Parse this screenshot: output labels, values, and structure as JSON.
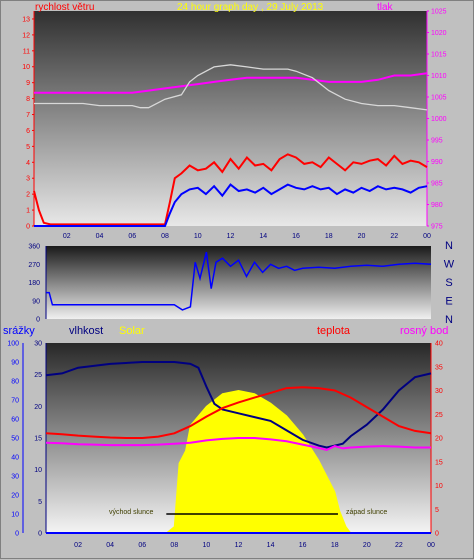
{
  "top_panel": {
    "label_left": "rychlost větru",
    "title": "24 hour graph day , 29 July 2013",
    "label_right": "tlak"
  },
  "mid_panel": {
    "compass": [
      "N",
      "W",
      "S",
      "E",
      "N"
    ]
  },
  "bottom_panel": {
    "labels": {
      "rain": "srážky",
      "humidity": "vlhkost",
      "solar": "Solar",
      "temperature": "teplota",
      "dewpoint": "rosný bod"
    },
    "annotations": {
      "sunrise": "východ slunce",
      "sunset": "západ slunce"
    }
  },
  "colors": {
    "wind_gust": "#ff0000",
    "wind_avg": "#0000ff",
    "pressure": "#ff00ff",
    "pressure_trend": "#d8d8d8",
    "temperature": "#ff0000",
    "dewpoint": "#ff00ff",
    "humidity": "#000080",
    "solar": "#ffff00",
    "rain_axis": "#0000ff",
    "title": "#ffff00"
  },
  "chart_data": [
    {
      "type": "line",
      "title": "24 hour graph day , 29 July 2013",
      "x_ticks": [
        "02",
        "04",
        "06",
        "08",
        "10",
        "12",
        "14",
        "16",
        "18",
        "20",
        "22",
        "00"
      ],
      "xlim": [
        0,
        24
      ],
      "y_left": {
        "label": "rychlost větru",
        "ticks": [
          0,
          1,
          2,
          3,
          4,
          5,
          6,
          7,
          8,
          9,
          10,
          11,
          12,
          13
        ],
        "ylim": [
          0,
          13.5
        ]
      },
      "y_right": {
        "label": "tlak",
        "ticks": [
          975,
          980,
          985,
          990,
          995,
          1000,
          1005,
          1010,
          1015,
          1020,
          1025
        ],
        "ylim": [
          975,
          1025
        ]
      },
      "series": [
        {
          "name": "",
          "axis": "left",
          "color": "wind_gust",
          "x": [
            0.0,
            0.3,
            0.6,
            1,
            2,
            3,
            4,
            5,
            6,
            7,
            8,
            8.3,
            8.6,
            9,
            9.5,
            10,
            10.5,
            11,
            11.5,
            12,
            12.5,
            13,
            13.5,
            14,
            14.5,
            15,
            15.5,
            16,
            16.5,
            17,
            17.5,
            18,
            18.5,
            19,
            19.5,
            20,
            20.5,
            21,
            21.5,
            22,
            22.5,
            23,
            23.5,
            24
          ],
          "y": [
            2.2,
            1.0,
            0.2,
            0.1,
            0.1,
            0.1,
            0.1,
            0.1,
            0.1,
            0.1,
            0.1,
            1.5,
            3.0,
            3.3,
            3.8,
            3.5,
            3.6,
            4.0,
            3.4,
            4.2,
            3.6,
            4.3,
            3.8,
            3.9,
            3.5,
            4.2,
            4.5,
            4.3,
            3.9,
            4.0,
            3.7,
            4.3,
            3.9,
            3.5,
            4.0,
            3.9,
            4.1,
            4.2,
            3.8,
            4.4,
            3.9,
            4.1,
            4.0,
            3.7
          ]
        },
        {
          "name": "",
          "axis": "left",
          "color": "wind_avg",
          "x": [
            0,
            1,
            2,
            3,
            4,
            5,
            6,
            7,
            8,
            8.3,
            8.6,
            9,
            9.5,
            10,
            10.5,
            11,
            11.5,
            12,
            12.5,
            13,
            13.5,
            14,
            14.5,
            15,
            15.5,
            16,
            16.5,
            17,
            17.5,
            18,
            18.5,
            19,
            19.5,
            20,
            20.5,
            21,
            21.5,
            22,
            22.5,
            23,
            23.5,
            24
          ],
          "y": [
            0,
            0,
            0,
            0,
            0,
            0,
            0,
            0,
            0,
            0.8,
            1.5,
            2.0,
            2.3,
            2.4,
            2.0,
            2.5,
            1.9,
            2.6,
            2.2,
            2.3,
            2.1,
            2.4,
            2.0,
            2.3,
            2.6,
            2.4,
            2.3,
            2.5,
            2.3,
            2.4,
            2.0,
            2.3,
            2.1,
            2.4,
            2.2,
            2.5,
            2.3,
            2.4,
            2.3,
            2.1,
            2.4,
            2.5
          ]
        },
        {
          "name": "",
          "axis": "right",
          "color": "pressure",
          "x": [
            0,
            2,
            4,
            6,
            7,
            8,
            9,
            10,
            11,
            12,
            13,
            14,
            15,
            16,
            17,
            18,
            19,
            20,
            21,
            22,
            23,
            24
          ],
          "y": [
            1006,
            1006,
            1006,
            1006,
            1006.5,
            1007,
            1007.5,
            1008,
            1008.5,
            1009,
            1009.5,
            1009.5,
            1009.5,
            1009.5,
            1009,
            1008.5,
            1008.5,
            1008.5,
            1009,
            1010,
            1010,
            1010.5
          ]
        },
        {
          "name": "",
          "axis": "right",
          "color": "pressure_trend",
          "x": [
            0,
            2,
            3,
            4,
            5,
            6,
            6.5,
            7,
            8,
            9,
            9.5,
            10,
            11,
            12,
            13,
            14,
            15,
            15.5,
            16,
            17,
            18,
            19,
            20,
            21,
            22,
            23,
            24
          ],
          "y": [
            1003.5,
            1003.5,
            1003.5,
            1003,
            1003,
            1003,
            1002.5,
            1002.5,
            1004.5,
            1005.5,
            1008.5,
            1010,
            1012,
            1012.5,
            1012,
            1011.5,
            1011.5,
            1011.5,
            1011,
            1009.5,
            1006.5,
            1004.5,
            1003.5,
            1003,
            1003,
            1002.5,
            1002
          ]
        }
      ]
    },
    {
      "type": "line",
      "title": "",
      "x_ticks": [],
      "xlim": [
        0,
        24
      ],
      "y_left": {
        "ticks": [
          0,
          90,
          180,
          270,
          360
        ],
        "ylim": [
          0,
          360
        ]
      },
      "compass": [
        "N",
        "W",
        "S",
        "E",
        "N"
      ],
      "series": [
        {
          "name": "",
          "color": "wind_avg",
          "x": [
            0,
            0.2,
            0.4,
            1,
            2,
            4,
            6,
            8,
            8.5,
            9,
            9.3,
            9.6,
            10,
            10.3,
            10.6,
            11,
            11.5,
            12,
            12.5,
            13,
            13.5,
            14,
            14.5,
            15,
            15.5,
            16,
            17,
            18,
            19,
            20,
            21,
            22,
            23,
            24
          ],
          "y": [
            130,
            130,
            70,
            70,
            70,
            70,
            70,
            70,
            45,
            60,
            280,
            200,
            330,
            150,
            280,
            300,
            260,
            290,
            210,
            280,
            230,
            270,
            250,
            260,
            240,
            250,
            255,
            250,
            260,
            265,
            260,
            270,
            275,
            270
          ]
        }
      ]
    },
    {
      "type": "line",
      "title": "",
      "x_ticks": [
        "02",
        "04",
        "06",
        "08",
        "10",
        "12",
        "14",
        "16",
        "18",
        "20",
        "22",
        "00"
      ],
      "xlim": [
        0,
        24
      ],
      "y_rain": {
        "label": "srážky",
        "ticks": [
          0,
          10,
          20,
          30,
          40,
          50,
          60,
          70,
          80,
          90,
          100
        ],
        "ylim": [
          0,
          100
        ]
      },
      "y_left": {
        "label": "vlhkost",
        "ticks": [
          0,
          5,
          10,
          15,
          20,
          25,
          30
        ],
        "ylim": [
          0,
          30
        ]
      },
      "y_right": {
        "label": "teplota",
        "ticks": [
          0,
          5,
          10,
          15,
          20,
          25,
          30,
          35,
          40
        ],
        "ylim": [
          0,
          40
        ]
      },
      "annotations": [
        "východ slunce",
        "západ slunce"
      ],
      "series": [
        {
          "name": "Solar",
          "color": "solar",
          "x": [
            0,
            7,
            7.5,
            8,
            8.3,
            8.7,
            9,
            10,
            11,
            12,
            13,
            14,
            15,
            16,
            17,
            18,
            18.3,
            18.7,
            19,
            24
          ],
          "y": [
            0,
            0,
            0,
            1.0,
            11.0,
            13.0,
            17.0,
            20.0,
            22.0,
            22.5,
            22.0,
            20.5,
            18.5,
            15.5,
            11.5,
            6.5,
            3.5,
            1.0,
            0,
            0
          ]
        },
        {
          "name": "vlhkost",
          "color": "humidity",
          "x": [
            0,
            1,
            2,
            4,
            6,
            7,
            8,
            9,
            9.5,
            10,
            10.5,
            11,
            12,
            13,
            14,
            15,
            16,
            17,
            17.5,
            18,
            18.5,
            19,
            20,
            21,
            22,
            23,
            24
          ],
          "y": [
            83,
            84,
            87,
            89,
            90,
            90,
            90,
            89,
            87,
            77,
            68,
            65,
            63,
            61,
            59,
            54,
            49,
            46,
            45,
            46,
            47,
            51,
            57,
            65,
            75,
            82,
            84
          ]
        },
        {
          "name": "teplota",
          "color": "temperature",
          "x": [
            0,
            1,
            2,
            3,
            4,
            5,
            6,
            7,
            8,
            9,
            10,
            11,
            12,
            13,
            14,
            15,
            16,
            17,
            18,
            19,
            20,
            21,
            22,
            23,
            24
          ],
          "y": [
            21,
            20.8,
            20.5,
            20.3,
            20.1,
            20,
            20,
            20.3,
            21,
            22.5,
            24.5,
            26.3,
            27.5,
            28.5,
            29.5,
            30.5,
            30.7,
            30.5,
            30,
            28.5,
            26.5,
            24.5,
            22.5,
            21.5,
            21
          ]
        },
        {
          "name": "rosný bod",
          "color": "dewpoint",
          "x": [
            0,
            1,
            2,
            3,
            4,
            5,
            6,
            7,
            8,
            9,
            10,
            11,
            12,
            13,
            14,
            15,
            16,
            17,
            17.5,
            18,
            18.5,
            19,
            20,
            21,
            22,
            23,
            24
          ],
          "y": [
            19,
            18.9,
            18.7,
            18.6,
            18.5,
            18.5,
            18.5,
            18.6,
            18.8,
            19,
            19.5,
            19.8,
            20,
            20,
            19.7,
            19.3,
            18.6,
            17.9,
            17.5,
            18.3,
            17.8,
            18,
            18.2,
            18.3,
            18.2,
            18,
            18
          ]
        },
        {
          "name": "",
          "color": "rain_axis",
          "x": [
            0,
            24
          ],
          "y": [
            0,
            0
          ]
        }
      ]
    }
  ]
}
